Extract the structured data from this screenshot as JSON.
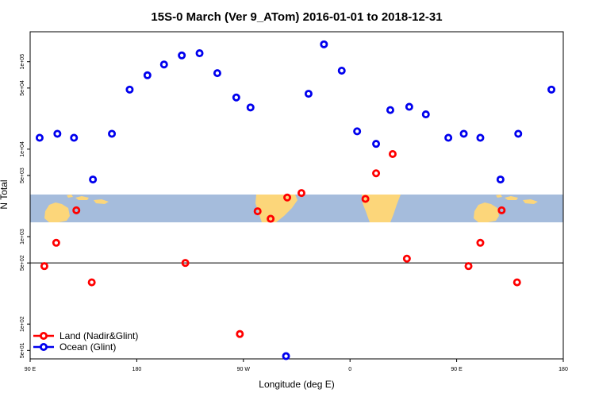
{
  "chart_data": {
    "type": "scatter",
    "title": "15S-0 March (Ver 9_ATom)   2016-01-01 to 2018-12-31",
    "xlabel": "Longitude (deg E)",
    "ylabel": "N Total",
    "x_ticks": [
      {
        "value": 90,
        "label": "90 E"
      },
      {
        "value": 180,
        "label": "180"
      },
      {
        "value": 270,
        "label": "90 W"
      },
      {
        "value": 360,
        "label": "0"
      },
      {
        "value": 450,
        "label": "90 E"
      },
      {
        "value": 540,
        "label": "180"
      }
    ],
    "y_ticks": [
      {
        "value": 50,
        "label": "5e+01"
      },
      {
        "value": 100,
        "label": "1e+02"
      },
      {
        "value": 500,
        "label": "5e+02"
      },
      {
        "value": 1000,
        "label": "1e+03"
      },
      {
        "value": 5000,
        "label": "5e+03"
      },
      {
        "value": 10000,
        "label": "1e+04"
      },
      {
        "value": 50000,
        "label": "5e+04"
      },
      {
        "value": 100000,
        "label": "1e+05"
      }
    ],
    "xlim": [
      90,
      540
    ],
    "ylim": [
      40,
      220000
    ],
    "y_scale": "log",
    "legend_position": "bottom-left",
    "series": [
      {
        "name": "Land (Nadir&Glint)",
        "color": "#ff0000",
        "points": [
          {
            "x": 102,
            "y": 460
          },
          {
            "x": 112,
            "y": 850
          },
          {
            "x": 129,
            "y": 2000
          },
          {
            "x": 142,
            "y": 300
          },
          {
            "x": 221,
            "y": 500
          },
          {
            "x": 267,
            "y": 77
          },
          {
            "x": 282,
            "y": 1950
          },
          {
            "x": 293,
            "y": 1600
          },
          {
            "x": 307,
            "y": 2800
          },
          {
            "x": 319,
            "y": 3150
          },
          {
            "x": 373,
            "y": 2700
          },
          {
            "x": 382,
            "y": 5300
          },
          {
            "x": 396,
            "y": 8800
          },
          {
            "x": 408,
            "y": 560
          },
          {
            "x": 460,
            "y": 460
          },
          {
            "x": 470,
            "y": 850
          },
          {
            "x": 488,
            "y": 2000
          },
          {
            "x": 501,
            "y": 300
          }
        ]
      },
      {
        "name": "Ocean (Glint)",
        "color": "#0000ee",
        "points": [
          {
            "x": 98,
            "y": 13500
          },
          {
            "x": 113,
            "y": 15000
          },
          {
            "x": 127,
            "y": 13500
          },
          {
            "x": 143,
            "y": 4500
          },
          {
            "x": 159,
            "y": 15000
          },
          {
            "x": 174,
            "y": 48000
          },
          {
            "x": 189,
            "y": 70000
          },
          {
            "x": 203,
            "y": 93000
          },
          {
            "x": 218,
            "y": 118000
          },
          {
            "x": 233,
            "y": 125000
          },
          {
            "x": 248,
            "y": 74000
          },
          {
            "x": 264,
            "y": 39000
          },
          {
            "x": 276,
            "y": 30000
          },
          {
            "x": 306,
            "y": 43
          },
          {
            "x": 325,
            "y": 43000
          },
          {
            "x": 338,
            "y": 158000
          },
          {
            "x": 353,
            "y": 79000
          },
          {
            "x": 366,
            "y": 16000
          },
          {
            "x": 382,
            "y": 11500
          },
          {
            "x": 394,
            "y": 28000
          },
          {
            "x": 410,
            "y": 30500
          },
          {
            "x": 424,
            "y": 25000
          },
          {
            "x": 443,
            "y": 13500
          },
          {
            "x": 456,
            "y": 15000
          },
          {
            "x": 470,
            "y": 13500
          },
          {
            "x": 487,
            "y": 4500
          },
          {
            "x": 502,
            "y": 15000
          },
          {
            "x": 530,
            "y": 48000
          }
        ]
      }
    ],
    "reference_line_y": 500,
    "map_strip": {
      "ocean_color": "#a5bcdc",
      "land_color": "#fcd67a"
    }
  }
}
